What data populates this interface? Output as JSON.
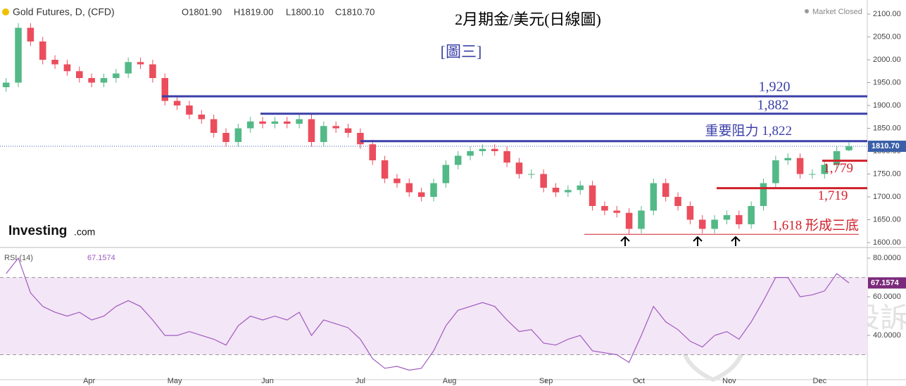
{
  "header": {
    "symbol": "Gold Futures, D, (CFD)",
    "open": "O1801.90",
    "high": "H1819.00",
    "low": "L1800.10",
    "close": "C1810.70",
    "status": "Market Closed",
    "last_label": "1810.70",
    "logo": "Investing",
    "logo_suffix": ".com",
    "watermark": "斑馬投訴"
  },
  "chart_data": [
    {
      "type": "candlestick",
      "title": "2月期金/美元(日線圖)",
      "subtitle": "[圖三]",
      "up_color": "#53b987",
      "down_color": "#eb4d5c",
      "open": [
        1940,
        1950,
        2070,
        2040,
        2000,
        1990,
        1975,
        1960,
        1950,
        1960,
        1970,
        1995,
        1990,
        1960,
        1910,
        1900,
        1880,
        1870,
        1840,
        1820,
        1850,
        1865,
        1860,
        1865,
        1860,
        1870,
        1820,
        1855,
        1850,
        1840,
        1815,
        1780,
        1740,
        1730,
        1710,
        1700,
        1730,
        1770,
        1790,
        1800,
        1805,
        1800,
        1775,
        1750,
        1750,
        1720,
        1710,
        1715,
        1725,
        1680,
        1670,
        1665,
        1630,
        1670,
        1730,
        1700,
        1680,
        1650,
        1630,
        1650,
        1660,
        1640,
        1680,
        1730,
        1780,
        1785,
        1750,
        1750,
        1770,
        1801.9
      ],
      "high": [
        1960,
        2080,
        2080,
        2050,
        2010,
        2000,
        1985,
        1970,
        1970,
        1980,
        2005,
        2005,
        2000,
        1970,
        1920,
        1910,
        1890,
        1880,
        1850,
        1860,
        1875,
        1875,
        1875,
        1875,
        1880,
        1880,
        1865,
        1865,
        1860,
        1850,
        1825,
        1790,
        1750,
        1740,
        1720,
        1740,
        1780,
        1800,
        1810,
        1815,
        1815,
        1810,
        1785,
        1760,
        1760,
        1730,
        1725,
        1735,
        1735,
        1690,
        1680,
        1675,
        1680,
        1740,
        1740,
        1710,
        1690,
        1660,
        1660,
        1670,
        1670,
        1690,
        1740,
        1790,
        1795,
        1795,
        1760,
        1780,
        1810,
        1819
      ],
      "low": [
        1930,
        1940,
        2030,
        1990,
        1980,
        1965,
        1950,
        1940,
        1940,
        1950,
        1960,
        1980,
        1950,
        1900,
        1890,
        1870,
        1860,
        1830,
        1810,
        1810,
        1840,
        1850,
        1850,
        1850,
        1850,
        1810,
        1810,
        1840,
        1830,
        1805,
        1770,
        1730,
        1720,
        1700,
        1690,
        1690,
        1720,
        1760,
        1780,
        1790,
        1790,
        1765,
        1740,
        1740,
        1710,
        1700,
        1700,
        1705,
        1670,
        1660,
        1655,
        1618,
        1620,
        1660,
        1690,
        1670,
        1640,
        1620,
        1620,
        1640,
        1630,
        1630,
        1670,
        1720,
        1770,
        1740,
        1740,
        1740,
        1760,
        1800.1
      ],
      "close": [
        1950,
        2070,
        2040,
        2000,
        1990,
        1975,
        1960,
        1950,
        1960,
        1970,
        1995,
        1990,
        1960,
        1910,
        1900,
        1880,
        1870,
        1840,
        1820,
        1850,
        1865,
        1860,
        1865,
        1860,
        1870,
        1820,
        1855,
        1850,
        1840,
        1815,
        1780,
        1740,
        1730,
        1710,
        1700,
        1730,
        1770,
        1790,
        1800,
        1805,
        1800,
        1775,
        1750,
        1750,
        1720,
        1710,
        1715,
        1725,
        1680,
        1670,
        1665,
        1630,
        1670,
        1730,
        1700,
        1680,
        1650,
        1630,
        1650,
        1660,
        1640,
        1680,
        1730,
        1780,
        1785,
        1750,
        1750,
        1770,
        1800,
        1810.7
      ],
      "xlim": [
        -0.5,
        70.5
      ],
      "xticks": [
        {
          "value": 6.8,
          "label": "Apr"
        },
        {
          "value": 13.8,
          "label": "May"
        },
        {
          "value": 21.4,
          "label": "Jun"
        },
        {
          "value": 29,
          "label": "Jul"
        },
        {
          "value": 36.3,
          "label": "Aug"
        },
        {
          "value": 44.2,
          "label": "Sep"
        },
        {
          "value": 51.8,
          "label": "Oct"
        },
        {
          "value": 59.2,
          "label": "Nov"
        },
        {
          "value": 66.6,
          "label": "Dec"
        }
      ],
      "ylim": [
        1589.2,
        2130.8
      ],
      "yticks": [
        {
          "value": 2100,
          "label": "2100.00"
        },
        {
          "value": 2050,
          "label": "2050.00"
        },
        {
          "value": 2000,
          "label": "2000.00"
        },
        {
          "value": 1950,
          "label": "1950.00"
        },
        {
          "value": 1900,
          "label": "1900.00"
        },
        {
          "value": 1850,
          "label": "1850.00"
        },
        {
          "value": 1800,
          "label": "1800.00"
        },
        {
          "value": 1750,
          "label": "1750.00"
        },
        {
          "value": 1700,
          "label": "1700.00"
        },
        {
          "value": 1650,
          "label": "1650.00"
        },
        {
          "value": 1600,
          "label": "1600.00"
        }
      ],
      "levels": [
        {
          "value": 1920,
          "label": "1,920",
          "color": "#3a3fa8"
        },
        {
          "value": 1882,
          "label": "1,882",
          "color": "#3a3fa8"
        },
        {
          "value": 1822,
          "label": "重要阻力 1,822",
          "color": "#3a3fa8"
        },
        {
          "value": 1779,
          "label": "1,779",
          "color": "#d0202a"
        },
        {
          "value": 1719,
          "label": "1,719",
          "color": "#d0202a"
        },
        {
          "value": 1618,
          "label": "1,618 形成三底",
          "color": "#d0202a"
        }
      ]
    },
    {
      "type": "line",
      "name": "RSI (14)",
      "color": "#a05ac0",
      "values": [
        72,
        80,
        62,
        55,
        52,
        50,
        52,
        48,
        50,
        55,
        58,
        55,
        48,
        40,
        40,
        42,
        40,
        38,
        35,
        45,
        50,
        48,
        50,
        48,
        52,
        40,
        48,
        46,
        44,
        38,
        28,
        23,
        24,
        22,
        23,
        32,
        45,
        53,
        55,
        57,
        55,
        48,
        42,
        43,
        36,
        35,
        38,
        40,
        32,
        31,
        30,
        26,
        40,
        55,
        47,
        43,
        37,
        34,
        40,
        42,
        38,
        47,
        58,
        70,
        70,
        60,
        61,
        63,
        72,
        67.1574
      ],
      "ylim": [
        17.1,
        84.4
      ],
      "yticks": [
        {
          "value": 80,
          "label": "80.0000"
        },
        {
          "value": 60,
          "label": "60.0000"
        },
        {
          "value": 40,
          "label": "40.0000"
        }
      ],
      "levels": [
        70,
        30
      ]
    }
  ]
}
